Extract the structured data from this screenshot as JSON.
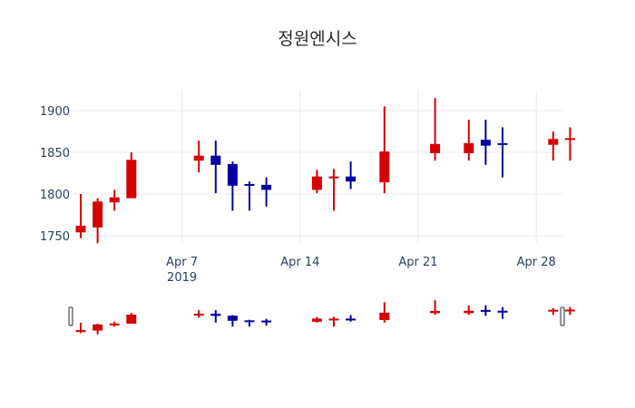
{
  "chart_data": {
    "type": "candlestick",
    "title": "정원엔시스",
    "xlabel": "",
    "ylabel": "",
    "ylim": [
      1735,
      1920
    ],
    "yticks": [
      1750,
      1800,
      1850,
      1900
    ],
    "xticks": [
      {
        "date": "2019-04-07",
        "label": "Apr 7",
        "sublabel": "2019"
      },
      {
        "date": "2019-04-14",
        "label": "Apr 14",
        "sublabel": ""
      },
      {
        "date": "2019-04-21",
        "label": "Apr 21",
        "sublabel": ""
      },
      {
        "date": "2019-04-28",
        "label": "Apr 28",
        "sublabel": ""
      }
    ],
    "grid": true,
    "increasing_color": "#d60000",
    "decreasing_color": "#0000a0",
    "rangeslider": true,
    "data": [
      {
        "date": "2019-04-01",
        "open": 1754,
        "high": 1800,
        "low": 1747,
        "close": 1762
      },
      {
        "date": "2019-04-02",
        "open": 1760,
        "high": 1795,
        "low": 1741,
        "close": 1791
      },
      {
        "date": "2019-04-03",
        "open": 1790,
        "high": 1805,
        "low": 1780,
        "close": 1796
      },
      {
        "date": "2019-04-04",
        "open": 1795,
        "high": 1850,
        "low": 1795,
        "close": 1841
      },
      {
        "date": "2019-04-08",
        "open": 1840,
        "high": 1864,
        "low": 1826,
        "close": 1846
      },
      {
        "date": "2019-04-09",
        "open": 1846,
        "high": 1864,
        "low": 1801,
        "close": 1835
      },
      {
        "date": "2019-04-10",
        "open": 1836,
        "high": 1839,
        "low": 1780,
        "close": 1810
      },
      {
        "date": "2019-04-11",
        "open": 1812,
        "high": 1815,
        "low": 1780,
        "close": 1810
      },
      {
        "date": "2019-04-12",
        "open": 1811,
        "high": 1820,
        "low": 1785,
        "close": 1805
      },
      {
        "date": "2019-04-15",
        "open": 1805,
        "high": 1829,
        "low": 1801,
        "close": 1821
      },
      {
        "date": "2019-04-16",
        "open": 1819,
        "high": 1830,
        "low": 1780,
        "close": 1821
      },
      {
        "date": "2019-04-17",
        "open": 1821,
        "high": 1839,
        "low": 1806,
        "close": 1815
      },
      {
        "date": "2019-04-19",
        "open": 1814,
        "high": 1905,
        "low": 1801,
        "close": 1851
      },
      {
        "date": "2019-04-22",
        "open": 1849,
        "high": 1915,
        "low": 1840,
        "close": 1860
      },
      {
        "date": "2019-04-24",
        "open": 1849,
        "high": 1889,
        "low": 1840,
        "close": 1861
      },
      {
        "date": "2019-04-25",
        "open": 1865,
        "high": 1889,
        "low": 1835,
        "close": 1858
      },
      {
        "date": "2019-04-26",
        "open": 1861,
        "high": 1880,
        "low": 1820,
        "close": 1859
      },
      {
        "date": "2019-04-29",
        "open": 1859,
        "high": 1875,
        "low": 1840,
        "close": 1866
      },
      {
        "date": "2019-04-30",
        "open": 1865,
        "high": 1880,
        "low": 1840,
        "close": 1867
      }
    ]
  }
}
